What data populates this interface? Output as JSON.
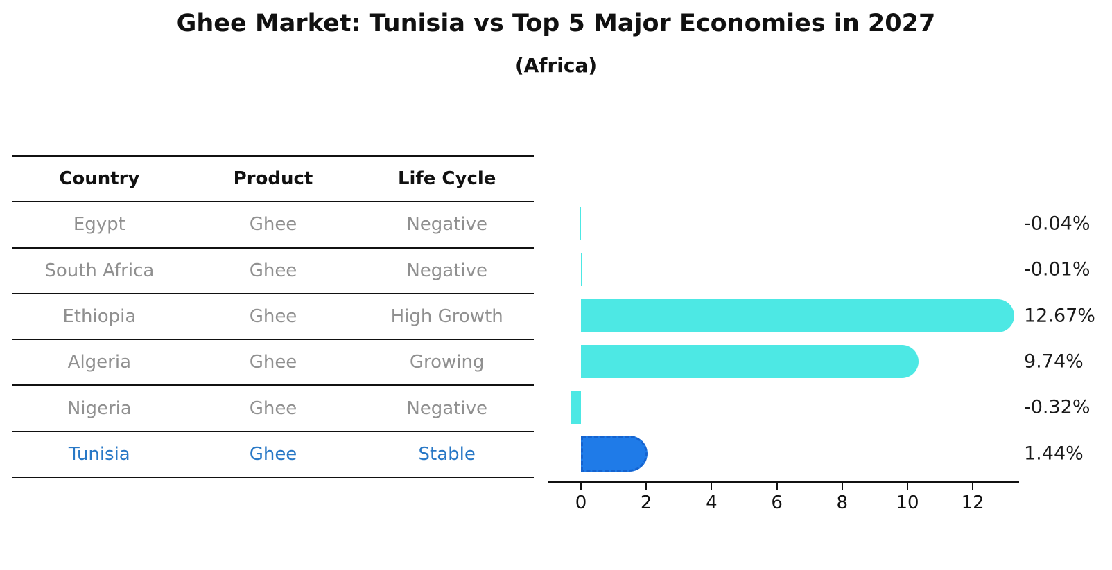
{
  "title": "Ghee Market: Tunisia vs Top 5 Major Economies in 2027",
  "subtitle": "(Africa)",
  "table": {
    "columns": [
      "Country",
      "Product",
      "Life Cycle"
    ],
    "rows": [
      {
        "country": "Egypt",
        "product": "Ghee",
        "life_cycle": "Negative",
        "highlight": false
      },
      {
        "country": "South Africa",
        "product": "Ghee",
        "life_cycle": "Negative",
        "highlight": false
      },
      {
        "country": "Ethiopia",
        "product": "Ghee",
        "life_cycle": "High Growth",
        "highlight": false
      },
      {
        "country": "Algeria",
        "product": "Ghee",
        "life_cycle": "Growing",
        "highlight": false
      },
      {
        "country": "Nigeria",
        "product": "Ghee",
        "life_cycle": "Negative",
        "highlight": false
      },
      {
        "country": "Tunisia",
        "product": "Ghee",
        "life_cycle": "Stable",
        "highlight": true
      }
    ]
  },
  "chart_data": {
    "type": "bar",
    "orientation": "horizontal",
    "title": "Ghee Market: Tunisia vs Top 5 Major Economies in 2027",
    "subtitle": "(Africa)",
    "categories": [
      "Egypt",
      "South Africa",
      "Ethiopia",
      "Algeria",
      "Nigeria",
      "Tunisia"
    ],
    "values": [
      -0.04,
      -0.01,
      12.67,
      9.74,
      -0.32,
      1.44
    ],
    "value_labels": [
      "-0.04%",
      "-0.01%",
      "12.67%",
      "9.74%",
      "-0.32%",
      "1.44%"
    ],
    "x_ticks": [
      0,
      2,
      4,
      6,
      8,
      10,
      12
    ],
    "xlim": [
      -0.99,
      13.43
    ],
    "grid": false,
    "legend": "none",
    "highlight_category": "Tunisia",
    "colors": {
      "bar": "#4DE8E4",
      "highlight_bar": "#1F7BE8",
      "highlight_border": "#1563CF",
      "highlight_text": "#2878C6",
      "row_text": "#909090",
      "header_text": "#111111",
      "axis": "#111111"
    }
  }
}
